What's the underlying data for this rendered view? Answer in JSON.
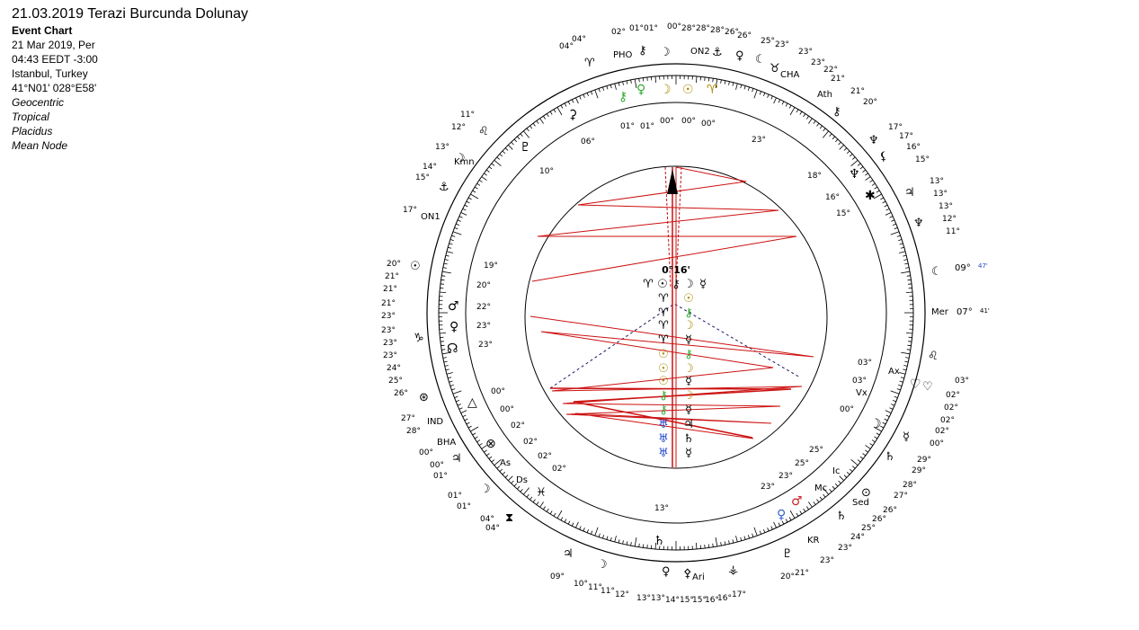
{
  "info": {
    "title": "21.03.2019 Terazi Burcunda Dolunay",
    "chart_type": "Event Chart",
    "date": "21 Mar 2019, Per",
    "time": "04:43  EEDT -3:00",
    "place": "Istanbul, Turkey",
    "coords": "41°N01' 028°E58'",
    "zodiac": "Geocentric",
    "system": "Tropical",
    "houses": "Placidus",
    "node": "Mean Node"
  },
  "colors": {
    "aspect_line": "#cc1111",
    "fire": "#cc2222",
    "earth": "#33aa33",
    "air": "#2244cc",
    "water": "#3366cc",
    "sun": "#aa8800",
    "text": "#000000"
  },
  "center": {
    "label": "0°16'"
  },
  "axis_labels": {
    "mer": "Mer",
    "mer_deg": "07°",
    "mer_min": "41'",
    "ind": "IND",
    "bha": "BHA",
    "kr": "KR",
    "ari": "Ari",
    "pho": "PHO",
    "on2": "ON2",
    "on1": "ON1",
    "kmn": "Kmn",
    "ath": "Ath",
    "cha": "CHA",
    "sed": "Sed",
    "as": "As",
    "ds": "Ds",
    "mc": "Mc",
    "ic": "Ic",
    "vx": "Vx",
    "ax": "Ax"
  },
  "asc_point": {
    "deg": "09°",
    "min": "47'"
  }
}
